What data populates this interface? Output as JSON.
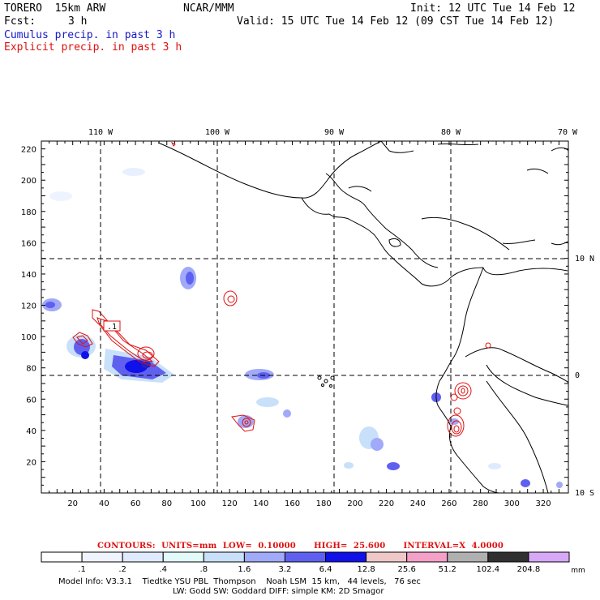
{
  "header": {
    "model": "TORERO  15km ARW",
    "org": "NCAR/MMM",
    "init": "Init: 12 UTC Tue 14 Feb 12",
    "fcst_label": "Fcst:",
    "fcst_value": "3 h",
    "valid": "Valid: 15 UTC Tue 14 Feb 12 (09 CST Tue 14 Feb 12)"
  },
  "legend": {
    "cumulus": "Cumulus precip. in past 3 h",
    "explicit": "Explicit precip. in past 3 h"
  },
  "map": {
    "lon_labels": [
      "110 W",
      "100 W",
      "90 W",
      "80 W",
      "70 W"
    ],
    "lat_labels": [
      "10 N",
      "0",
      "10 S"
    ],
    "x_ticks": [
      "20",
      "40",
      "60",
      "80",
      "100",
      "120",
      "140",
      "160",
      "180",
      "200",
      "220",
      "240",
      "260",
      "280",
      "300",
      "320"
    ],
    "y_ticks": [
      "220",
      "200",
      "180",
      "160",
      "140",
      "120",
      "100",
      "80",
      "60",
      "40",
      "20"
    ],
    "contour_label": ".1",
    "colors": {
      "land": "#000000",
      "grid": "#000000",
      "contour": "#e01010"
    }
  },
  "contours_line": {
    "label": "CONTOURS:",
    "units": "UNITS=mm",
    "low": "LOW=  0.10000",
    "high": "HIGH=  25.600",
    "interval": "INTERVAL=X  4.0000"
  },
  "colorbar": {
    "colors": [
      "#ffffff",
      "#f0f4ff",
      "#e0eaff",
      "#e2fafa",
      "#c8e0fa",
      "#a0aaf8",
      "#6060f0",
      "#1010e8",
      "#f0c8c8",
      "#f4a0c8",
      "#b0b0b0",
      "#303030",
      "#d8a8f8"
    ],
    "labels": [
      ".1",
      ".2",
      ".4",
      ".8",
      "1.6",
      "3.2",
      "6.4",
      "12.8",
      "25.6",
      "51.2",
      "102.4",
      "204.8"
    ],
    "unit": "mm"
  },
  "model_info": {
    "line1": "Model Info: V3.3.1    Tiedtke YSU PBL  Thompson    Noah LSM  15 km,   44 levels,   76 sec",
    "line2": "LW: Godd SW: Goddard DIFF: simple KM: 2D Smagor"
  }
}
